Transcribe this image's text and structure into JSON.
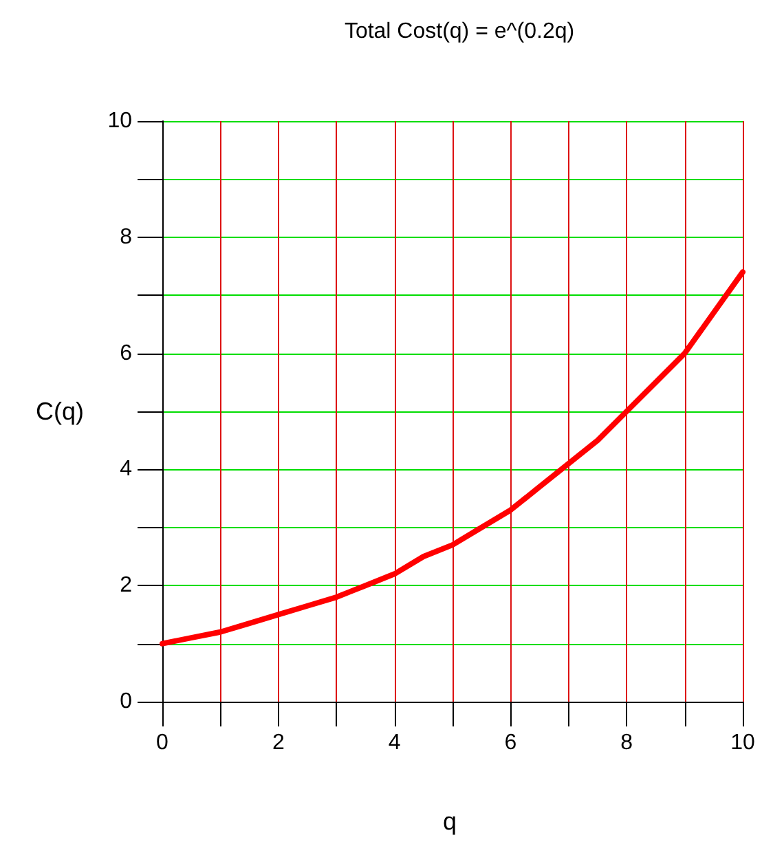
{
  "chart_data": {
    "type": "line",
    "title": "Total Cost(q) = e^(0.2q)",
    "xlabel": "q",
    "ylabel": "C(q)",
    "x": [
      0,
      0.5,
      1,
      1.5,
      2,
      2.5,
      3,
      3.5,
      4,
      4.5,
      5,
      5.5,
      6,
      6.5,
      7,
      7.5,
      8,
      8.5,
      9,
      9.5,
      10
    ],
    "series": [
      {
        "color": "#ff0000",
        "values": [
          1.0,
          1.1,
          1.2,
          1.35,
          1.5,
          1.65,
          1.8,
          2.0,
          2.2,
          2.5,
          2.7,
          3.0,
          3.3,
          3.7,
          4.1,
          4.5,
          5.0,
          5.5,
          6.0,
          6.7,
          7.4
        ]
      }
    ],
    "xlim": [
      0,
      10
    ],
    "ylim": [
      0,
      10
    ],
    "xticks": [
      0,
      {
        "value": 1,
        "label": null
      },
      2,
      {
        "value": 3,
        "label": null
      },
      4,
      {
        "value": 5,
        "label": null
      },
      6,
      {
        "value": 7,
        "label": null
      },
      8,
      {
        "value": 9,
        "label": null
      },
      10
    ],
    "yticks": [
      0,
      {
        "value": 1,
        "label": null
      },
      2,
      {
        "value": 3,
        "label": null
      },
      4,
      {
        "value": 5,
        "label": null
      },
      6,
      {
        "value": 7,
        "label": null
      },
      8,
      {
        "value": 9,
        "label": null
      },
      10
    ],
    "grid": true,
    "marker": "none",
    "line_style": "solid"
  }
}
